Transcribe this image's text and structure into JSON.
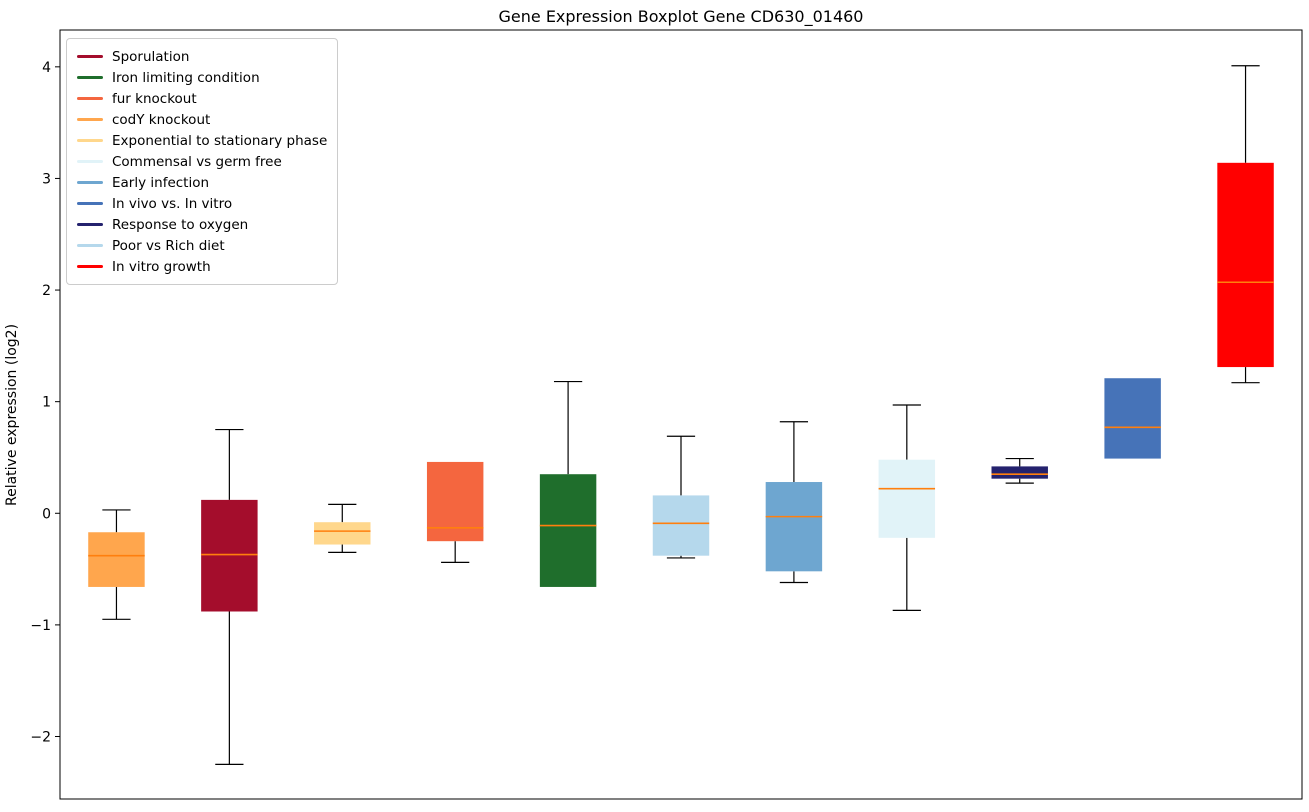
{
  "chart_data": {
    "type": "boxplot",
    "title": "Gene Expression Boxplot Gene CD630_01460",
    "ylabel": "Relative expression (log2)",
    "ylim": [
      -2.56,
      4.33
    ],
    "yticks": [
      {
        "value": 4,
        "label": "4"
      },
      {
        "value": 3,
        "label": "3"
      },
      {
        "value": 2,
        "label": "2"
      },
      {
        "value": 1,
        "label": "1"
      },
      {
        "value": 0,
        "label": "0"
      },
      {
        "value": -1,
        "label": "−1"
      },
      {
        "value": -2,
        "label": "−2"
      }
    ],
    "grid": false,
    "legend_position": "upper left",
    "median_color": "#ff7f0e",
    "whisker_color": "#000000",
    "legend": [
      {
        "label": "Sporulation",
        "color": "#a40d2c"
      },
      {
        "label": "Iron limiting condition",
        "color": "#1f6e2c"
      },
      {
        "label": "fur knockout",
        "color": "#f4663f"
      },
      {
        "label": "codY knockout",
        "color": "#ffa64d"
      },
      {
        "label": "Exponential to stationary phase",
        "color": "#ffd78c"
      },
      {
        "label": "Commensal vs germ free",
        "color": "#e1f3f8"
      },
      {
        "label": "Early infection",
        "color": "#6ea6d0"
      },
      {
        "label": "In vivo vs. In vitro",
        "color": "#4673b8"
      },
      {
        "label": "Response to oxygen",
        "color": "#24226e"
      },
      {
        "label": "Poor vs Rich diet",
        "color": "#b5d8ec"
      },
      {
        "label": "In vitro growth",
        "color": "#ff0000"
      }
    ],
    "boxes": [
      {
        "condition": "codY knockout",
        "color": "#ffa64d",
        "whisker_low": -0.95,
        "q1": -0.66,
        "median": -0.38,
        "q3": -0.17,
        "whisker_high": 0.03
      },
      {
        "condition": "Sporulation",
        "color": "#a40d2c",
        "whisker_low": -2.25,
        "q1": -0.88,
        "median": -0.37,
        "q3": 0.12,
        "whisker_high": 0.75
      },
      {
        "condition": "Exponential to stationary phase",
        "color": "#ffd78c",
        "whisker_low": -0.35,
        "q1": -0.28,
        "median": -0.16,
        "q3": -0.08,
        "whisker_high": 0.08
      },
      {
        "condition": "fur knockout",
        "color": "#f4663f",
        "whisker_low": -0.44,
        "q1": -0.25,
        "median": -0.13,
        "q3": 0.46,
        "whisker_high": 0.46
      },
      {
        "condition": "Iron limiting condition",
        "color": "#1f6e2c",
        "whisker_low": -0.66,
        "q1": -0.66,
        "median": -0.11,
        "q3": 0.35,
        "whisker_high": 1.18
      },
      {
        "condition": "Poor vs Rich diet",
        "color": "#b5d8ec",
        "whisker_low": -0.4,
        "q1": -0.38,
        "median": -0.09,
        "q3": 0.16,
        "whisker_high": 0.69
      },
      {
        "condition": "Early infection",
        "color": "#6ea6d0",
        "whisker_low": -0.62,
        "q1": -0.52,
        "median": -0.03,
        "q3": 0.28,
        "whisker_high": 0.82
      },
      {
        "condition": "Commensal vs germ free",
        "color": "#e1f3f8",
        "whisker_low": -0.87,
        "q1": -0.22,
        "median": 0.22,
        "q3": 0.48,
        "whisker_high": 0.97
      },
      {
        "condition": "Response to oxygen",
        "color": "#24226e",
        "whisker_low": 0.27,
        "q1": 0.31,
        "median": 0.35,
        "q3": 0.42,
        "whisker_high": 0.49
      },
      {
        "condition": "In vivo vs. In vitro",
        "color": "#4673b8",
        "whisker_low": 0.49,
        "q1": 0.49,
        "median": 0.77,
        "q3": 1.21,
        "whisker_high": 1.21
      },
      {
        "condition": "In vitro growth",
        "color": "#ff0000",
        "whisker_low": 1.17,
        "q1": 1.31,
        "median": 2.07,
        "q3": 3.14,
        "whisker_high": 4.01
      }
    ]
  }
}
